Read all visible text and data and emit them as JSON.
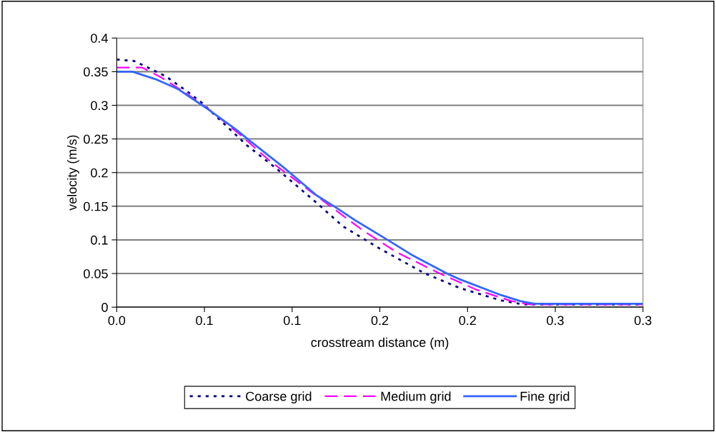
{
  "chart_data": {
    "type": "line",
    "xlabel": "crosstream distance (m)",
    "ylabel": "velocity (m/s)",
    "xlim": [
      0,
      0.3
    ],
    "xticks": [
      {
        "value": 0,
        "label": "0.0"
      },
      {
        "value": 0.05,
        "label": "0.1"
      },
      {
        "value": 0.1,
        "label": "0.1"
      },
      {
        "value": 0.15,
        "label": "0.2"
      },
      {
        "value": 0.2,
        "label": "0.2"
      },
      {
        "value": 0.25,
        "label": "0.3"
      },
      {
        "value": 0.3,
        "label": "0.3"
      }
    ],
    "ylim": [
      0,
      0.4
    ],
    "yticks": [
      0,
      0.05,
      0.1,
      0.15,
      0.2,
      0.25,
      0.3,
      0.35,
      0.4
    ],
    "grid": "y",
    "legend": "bottom",
    "marker": "none",
    "series": [
      {
        "name": "Coarse grid",
        "color": "#000080",
        "line_style": "dotted",
        "x": [
          0,
          0.0097,
          0.0187,
          0.028,
          0.04,
          0.048,
          0.074,
          0.092,
          0.114,
          0.129,
          0.15,
          0.175,
          0.195,
          0.219,
          0.232,
          0.3
        ],
        "values": [
          0.368,
          0.366,
          0.355,
          0.343,
          0.321,
          0.305,
          0.241,
          0.204,
          0.155,
          0.12,
          0.087,
          0.051,
          0.029,
          0.01,
          0.004,
          0.004
        ]
      },
      {
        "name": "Medium grid",
        "color": "#ff00ff",
        "line_style": "dashed",
        "x": [
          0,
          0.0146,
          0.025,
          0.039,
          0.054,
          0.07,
          0.087,
          0.11,
          0.13,
          0.141,
          0.16,
          0.185,
          0.205,
          0.225,
          0.236,
          0.3
        ],
        "values": [
          0.356,
          0.356,
          0.342,
          0.319,
          0.291,
          0.257,
          0.218,
          0.173,
          0.134,
          0.113,
          0.081,
          0.049,
          0.026,
          0.009,
          0.004,
          0.004
        ]
      },
      {
        "name": "Fine grid",
        "color": "#3366ff",
        "line_style": "solid",
        "x": [
          0,
          0.009,
          0.023,
          0.035,
          0.051,
          0.068,
          0.076,
          0.095,
          0.114,
          0.125,
          0.136,
          0.155,
          0.168,
          0.189,
          0.195,
          0.219,
          0.23,
          0.238,
          0.3
        ],
        "values": [
          0.35,
          0.35,
          0.338,
          0.324,
          0.296,
          0.264,
          0.247,
          0.208,
          0.166,
          0.148,
          0.129,
          0.099,
          0.078,
          0.049,
          0.042,
          0.018,
          0.009,
          0.005,
          0.005
        ]
      }
    ]
  }
}
